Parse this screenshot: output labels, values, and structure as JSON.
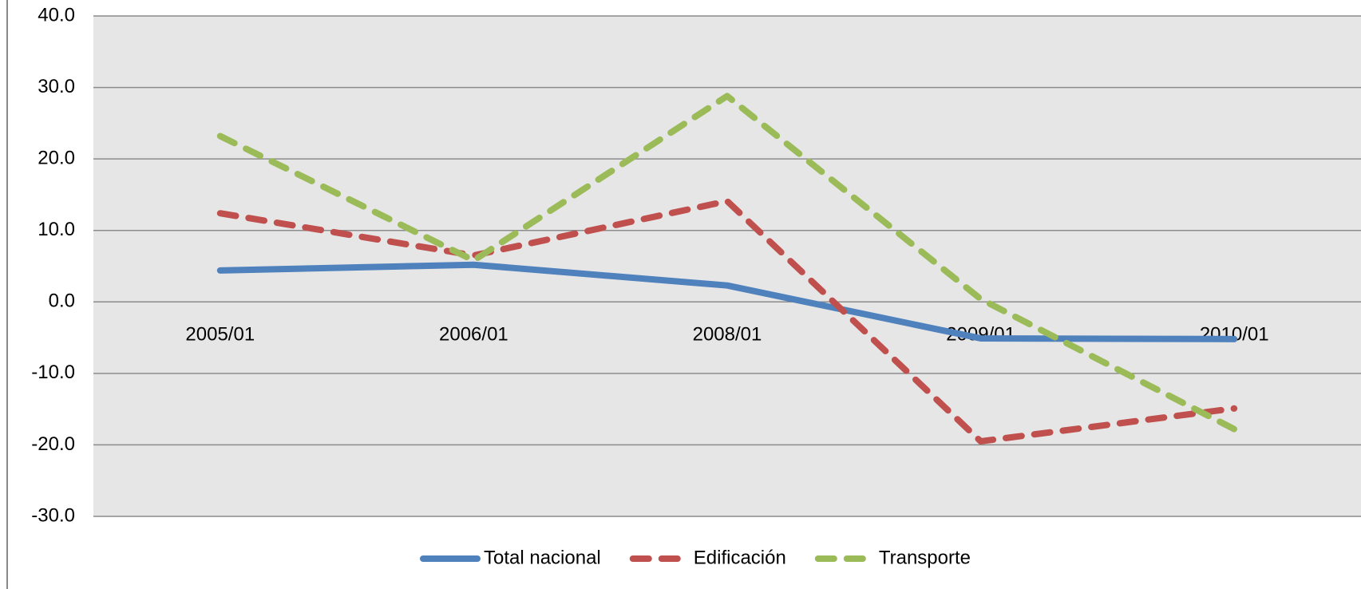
{
  "chart_data": {
    "type": "line",
    "categories": [
      "2005/01",
      "2006/01",
      "2008/01",
      "2009/01",
      "2010/01"
    ],
    "series": [
      {
        "name": "Total nacional",
        "color": "#4f81bd",
        "dash": false,
        "values": [
          4.4,
          5.2,
          2.3,
          -5.1,
          -5.2
        ]
      },
      {
        "name": "Edificación",
        "color": "#c0504d",
        "dash": true,
        "values": [
          12.4,
          6.5,
          14.1,
          -19.5,
          -14.9
        ]
      },
      {
        "name": "Transporte",
        "color": "#9bbb59",
        "dash": true,
        "values": [
          23.2,
          5.8,
          28.8,
          0.4,
          -17.8
        ]
      }
    ],
    "ylim": [
      -30,
      40
    ],
    "yticks": [
      {
        "value": -30,
        "label": "-30.0"
      },
      {
        "value": -20,
        "label": "-20.0"
      },
      {
        "value": -10,
        "label": "-10.0"
      },
      {
        "value": 0,
        "label": "0.0"
      },
      {
        "value": 10,
        "label": "10.0"
      },
      {
        "value": 20,
        "label": "20.0"
      },
      {
        "value": 30,
        "label": "30.0"
      },
      {
        "value": 40,
        "label": "40.0"
      }
    ],
    "grid": true,
    "legend": "bottom"
  }
}
